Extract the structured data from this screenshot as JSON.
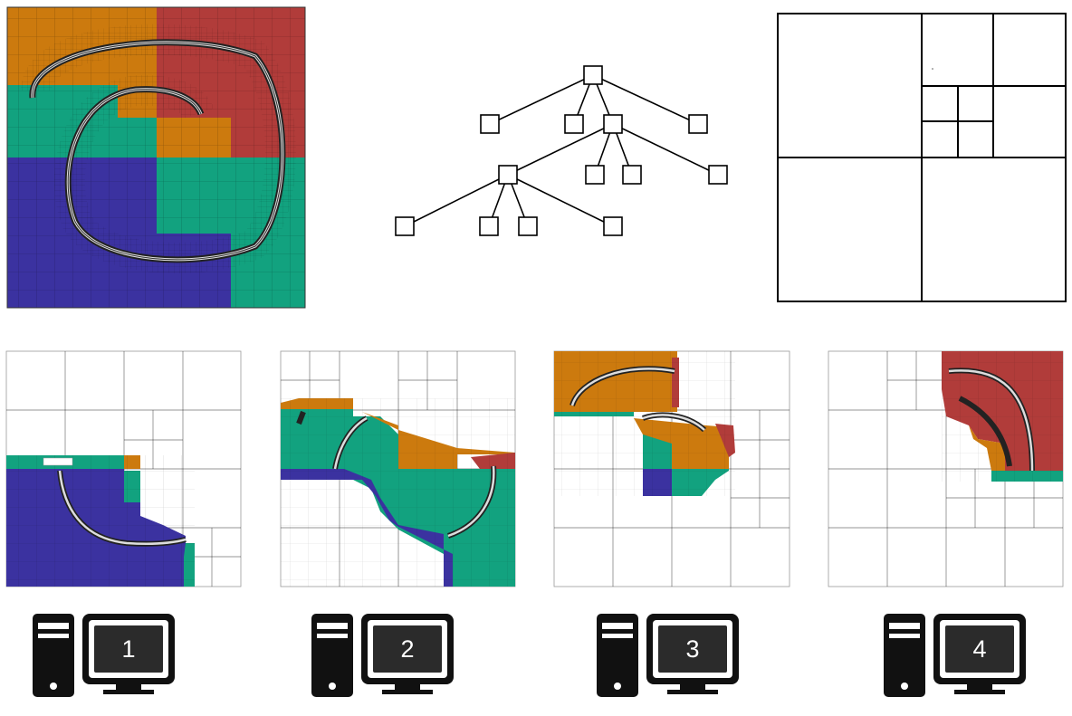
{
  "colors": {
    "process1": "#3b32a0",
    "process2": "#12a27f",
    "process3": "#cc7a0e",
    "process4": "#b13c3a"
  },
  "icons": [
    "computer-icon",
    "computer-icon",
    "computer-icon",
    "computer-icon"
  ],
  "computers": [
    {
      "label": "1"
    },
    {
      "label": "2"
    },
    {
      "label": "3"
    },
    {
      "label": "4"
    }
  ]
}
